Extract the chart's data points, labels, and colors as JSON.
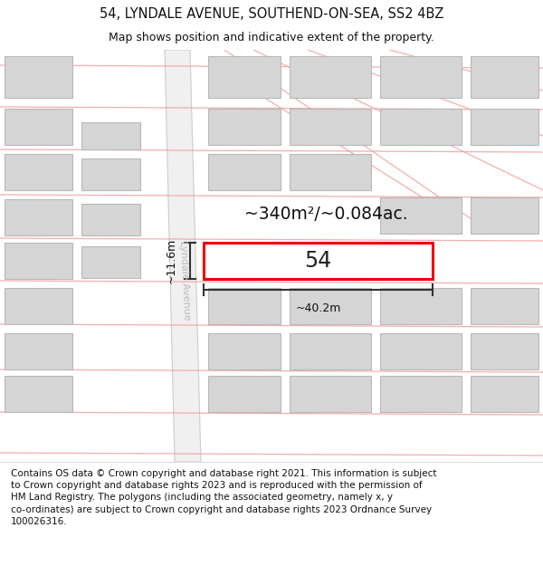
{
  "title": "54, LYNDALE AVENUE, SOUTHEND-ON-SEA, SS2 4BZ",
  "subtitle": "Map shows position and indicative extent of the property.",
  "footer": "Contains OS data © Crown copyright and database right 2021. This information is subject to Crown copyright and database rights 2023 and is reproduced with the permission of HM Land Registry. The polygons (including the associated geometry, namely x, y co-ordinates) are subject to Crown copyright and database rights 2023 Ordnance Survey 100026316.",
  "property_label": "54",
  "area_label": "~340m²/~0.084ac.",
  "width_label": "~40.2m",
  "height_label": "~11.6m",
  "street_label": "Lyndale Avenue",
  "bg_color": "#f8f8f8",
  "title_fontsize": 10.5,
  "subtitle_fontsize": 9,
  "footer_fontsize": 7.5
}
